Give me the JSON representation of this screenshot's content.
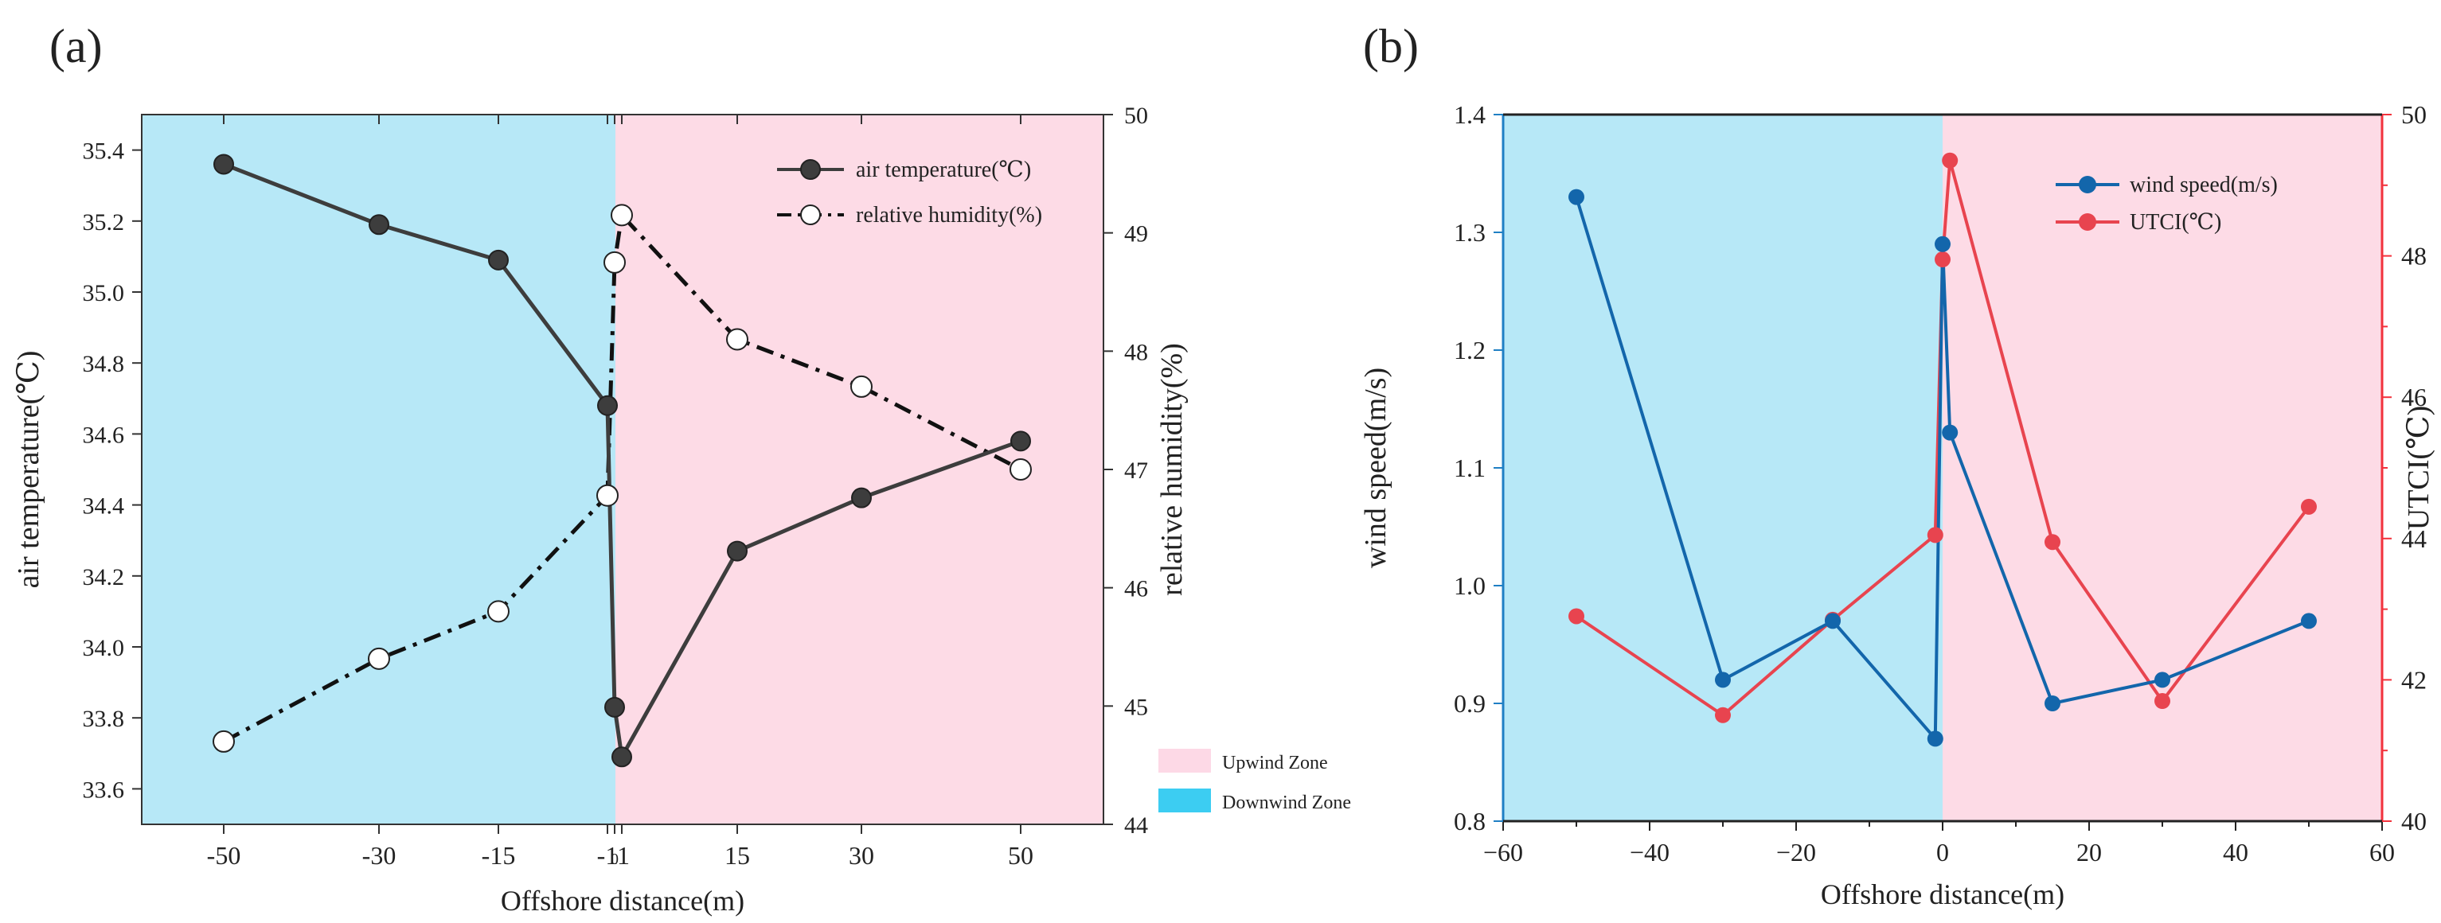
{
  "chart_data": [
    {
      "panel_label": "(a)",
      "type": "line",
      "xlabel": "Offshore distance(m)",
      "x_tick_labels": [
        "-50",
        "-30",
        "-15",
        "-1",
        "0",
        "1",
        "15",
        "30",
        "50"
      ],
      "y_left": {
        "label": "air temperature(℃)",
        "ylim": [
          33.5,
          35.5
        ],
        "ticks": [
          "33.6",
          "33.8",
          "34.0",
          "34.2",
          "34.4",
          "34.6",
          "34.8",
          "35.0",
          "35.2",
          "35.4"
        ]
      },
      "y_right": {
        "label": "relative humidity(%)",
        "ylim": [
          44,
          50
        ],
        "ticks": [
          "44",
          "45",
          "46",
          "47",
          "48",
          "49",
          "50"
        ]
      },
      "series": [
        {
          "name": "air temperature(℃)",
          "axis": "left",
          "color": "#3d3d3d",
          "marker": "filled-circle",
          "x": [
            -50,
            -30,
            -15,
            -1,
            0,
            1,
            15,
            30,
            50
          ],
          "values": [
            35.36,
            35.19,
            35.09,
            34.68,
            33.83,
            33.69,
            34.27,
            34.42,
            34.58
          ]
        },
        {
          "name": "relative humidity(%)",
          "axis": "right",
          "color": "#111111",
          "marker": "open-circle",
          "x": [
            -50,
            -30,
            -15,
            -1,
            0,
            1,
            15,
            30,
            50
          ],
          "values": [
            44.7,
            45.4,
            45.8,
            46.78,
            48.75,
            49.15,
            48.1,
            47.7,
            47.0
          ]
        }
      ],
      "zones_legend": [
        {
          "label": "Upwind Zone",
          "color": "#fdd9e6"
        },
        {
          "label": "Downwind Zone",
          "color": "#3ccdf2"
        }
      ]
    },
    {
      "panel_label": "(b)",
      "type": "line",
      "xlabel": "Offshore distance(m)",
      "xlim": [
        -60,
        60
      ],
      "x_tick_labels": [
        "−60",
        "−40",
        "−20",
        "0",
        "20",
        "40",
        "60"
      ],
      "y_left": {
        "label": "wind speed(m/s)",
        "ylim": [
          0.8,
          1.4
        ],
        "ticks": [
          "0.8",
          "0.9",
          "1.0",
          "1.1",
          "1.2",
          "1.3",
          "1.4"
        ],
        "color": "#1f7fc4"
      },
      "y_right": {
        "label": "UTCI(℃)",
        "ylim": [
          40,
          50
        ],
        "ticks": [
          "40",
          "42",
          "44",
          "46",
          "48",
          "50"
        ],
        "color": "#f2323c"
      },
      "series": [
        {
          "name": "wind speed(m/s)",
          "axis": "left",
          "color": "#1366ab",
          "x": [
            -50,
            -30,
            -15,
            -1,
            0,
            1,
            15,
            30,
            50
          ],
          "values": [
            1.33,
            0.92,
            0.97,
            0.87,
            1.29,
            1.13,
            0.9,
            0.92,
            0.97
          ]
        },
        {
          "name": "UTCI(℃)",
          "axis": "right",
          "color": "#e8444f",
          "x": [
            -50,
            -30,
            -15,
            -1,
            0,
            1,
            15,
            30,
            50
          ],
          "values": [
            42.9,
            41.5,
            42.85,
            44.05,
            47.95,
            49.35,
            43.95,
            41.7,
            44.45
          ]
        }
      ]
    }
  ],
  "colors": {
    "downwind_zone_bg": "#b7e8f7",
    "upwind_zone_bg": "#fddbe6",
    "legend_downwind_swatch": "#3ccdf2",
    "legend_upwind_swatch": "#fdd9e6"
  }
}
